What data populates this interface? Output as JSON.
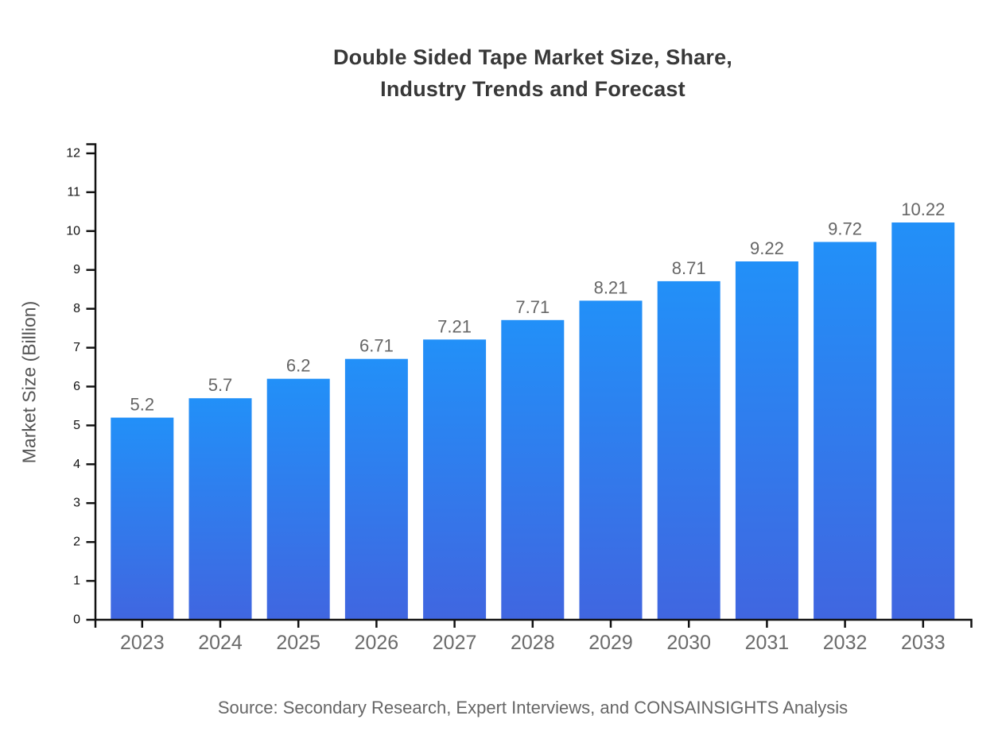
{
  "chart_data": {
    "type": "bar",
    "title": "Double Sided Tape Market Size, Share, Industry Trends and Forecast",
    "title_lines": [
      "Double Sided Tape Market Size, Share,",
      "Industry Trends and Forecast"
    ],
    "ylabel": "Market Size (Billion)",
    "xlabel": "",
    "categories": [
      "2023",
      "2024",
      "2025",
      "2026",
      "2027",
      "2028",
      "2029",
      "2030",
      "2031",
      "2032",
      "2033"
    ],
    "values": [
      5.2,
      5.7,
      6.2,
      6.71,
      7.21,
      7.71,
      8.21,
      8.71,
      9.22,
      9.72,
      10.22
    ],
    "value_labels": [
      "5.2",
      "5.7",
      "6.2",
      "6.71",
      "7.21",
      "7.71",
      "8.21",
      "8.71",
      "9.22",
      "9.72",
      "10.22"
    ],
    "ylim": [
      0,
      12
    ],
    "y_ticks": [
      0,
      1,
      2,
      3,
      4,
      5,
      6,
      7,
      8,
      9,
      10,
      11,
      12
    ],
    "grid": false,
    "legend_position": "none",
    "source": "Source: Secondary Research, Expert Interviews, and CONSAINSIGHTS Analysis",
    "colors": {
      "bar_gradient_top": "#2290f8",
      "bar_gradient_bottom": "#4066e0",
      "axis": "#111111",
      "y_tick_label": "#111111",
      "x_tick_label": "#6b6b6b",
      "value_label": "#666666",
      "title": "#383838",
      "axis_title": "#555555",
      "source": "#666666",
      "background": "#ffffff"
    }
  }
}
